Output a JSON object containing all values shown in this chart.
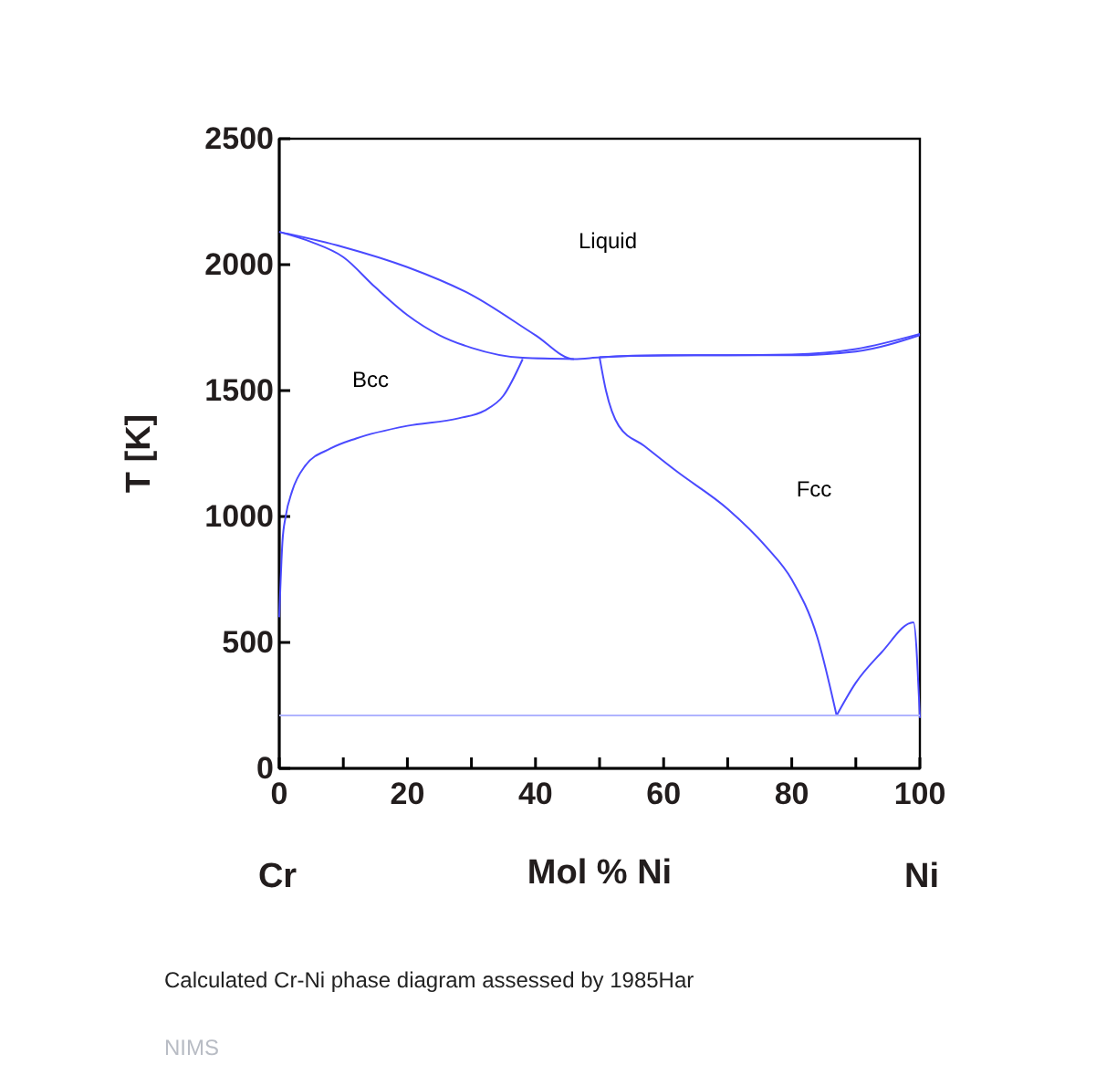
{
  "chart_data": {
    "type": "line",
    "xlabel": "Mol % Ni",
    "ylabel": "T [K]",
    "xlim": [
      0,
      100
    ],
    "ylim": [
      0,
      2500
    ],
    "xticks": [
      0,
      {
        "value": 10,
        "label": null
      },
      20,
      {
        "value": 30,
        "label": null
      },
      40,
      {
        "value": 50,
        "label": null
      },
      60,
      {
        "value": 70,
        "label": null
      },
      80,
      {
        "value": 90,
        "label": null
      },
      100
    ],
    "yticks": [
      0,
      500,
      1000,
      1500,
      2000,
      2500
    ],
    "grid": false,
    "marker": "none",
    "line_style": "solid",
    "series": [
      {
        "color": "#4a4aff",
        "x": [
          0,
          10,
          20,
          30,
          40,
          46,
          50,
          60,
          70,
          80,
          90,
          100
        ],
        "values": [
          2130,
          2070,
          1990,
          1880,
          1720,
          1625,
          1632,
          1640,
          1640,
          1643,
          1665,
          1725
        ]
      },
      {
        "color": "#4a4aff",
        "x": [
          0,
          5,
          10,
          15,
          20,
          25,
          30,
          38,
          46
        ],
        "values": [
          2130,
          2090,
          2030,
          1910,
          1800,
          1720,
          1670,
          1630,
          1625
        ]
      },
      {
        "color": "#4a4aff",
        "x": [
          50,
          55,
          65,
          80,
          90,
          100
        ],
        "values": [
          1632,
          1638,
          1640,
          1640,
          1655,
          1720
        ]
      },
      {
        "color": "#4a4aff",
        "x": [
          0,
          0.5,
          1,
          2,
          4,
          8,
          12,
          20,
          28,
          32,
          35,
          38
        ],
        "values": [
          600,
          900,
          1000,
          1100,
          1200,
          1270,
          1310,
          1360,
          1390,
          1420,
          1480,
          1625
        ]
      },
      {
        "color": "#4a4aff",
        "x": [
          50,
          51,
          53,
          57,
          62,
          70,
          76,
          80,
          84,
          87
        ],
        "values": [
          1632,
          1500,
          1360,
          1280,
          1180,
          1030,
          880,
          750,
          520,
          210
        ]
      },
      {
        "color": "#4a4aff",
        "x": [
          87,
          90,
          94,
          99,
          100
        ],
        "values": [
          210,
          340,
          460,
          580,
          200
        ]
      },
      {
        "color": "#b0b4ff",
        "x": [
          0,
          100
        ],
        "values": [
          210,
          210
        ]
      }
    ],
    "annotations": [
      "Liquid",
      "Bcc",
      "Fcc",
      "Cr",
      "Ni",
      "Calculated Cr-Ni phase diagram assessed by 1985Har",
      "NIMS"
    ]
  }
}
